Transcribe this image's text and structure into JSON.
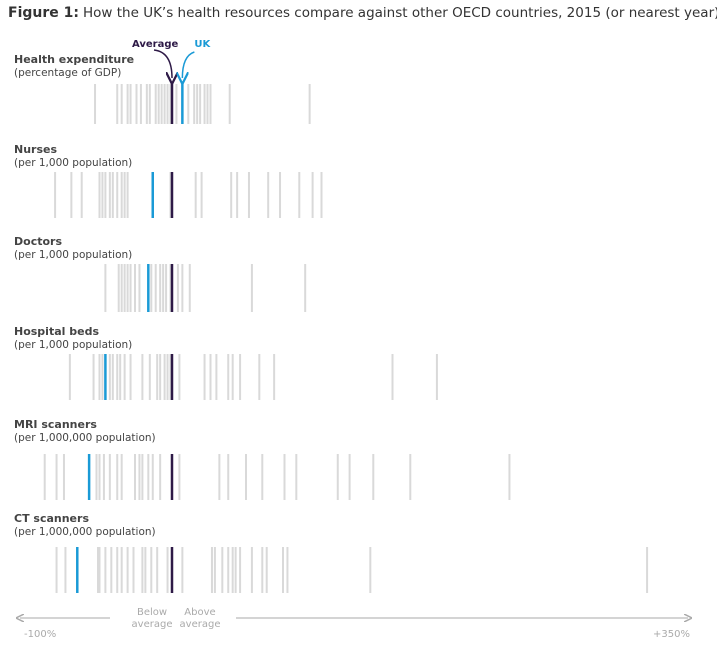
{
  "chart_data": {
    "type": "strip",
    "title_label": "Figure 1:",
    "title": "How the UK’s health resources compare against other OECD countries, 2015 (or nearest year)",
    "average_label": "Average",
    "uk_label": "UK",
    "below_label": "Below average",
    "above_label": "Above average",
    "xlim": [
      -100,
      350
    ],
    "xticks": [
      {
        "value": -100,
        "label": "-100%"
      },
      {
        "value": 350,
        "label": "+350%"
      }
    ],
    "colors": {
      "other": "#d9d9d9",
      "average": "#2e1a47",
      "uk": "#1a9ad6"
    },
    "panels": [
      {
        "title": "Health expenditure",
        "subtitle": "(percentage of GDP)",
        "average": 0,
        "uk": 7,
        "values": [
          -52,
          -37,
          -34,
          -30,
          -28,
          -24,
          -21,
          -17,
          -15,
          -11,
          -9,
          -7,
          -5,
          -3,
          -1,
          3,
          11,
          15,
          17,
          19,
          22,
          24,
          26,
          39,
          93
        ]
      },
      {
        "title": "Nurses",
        "subtitle": "(per 1,000 population)",
        "average": 0,
        "uk": -13,
        "values": [
          -79,
          -68,
          -61,
          -49,
          -47,
          -45,
          -42,
          -40,
          -37,
          -34,
          -32,
          -30,
          -1,
          16,
          20,
          40,
          44,
          52,
          65,
          73,
          86,
          95,
          101
        ]
      },
      {
        "title": "Doctors",
        "subtitle": "(per 1,000 population)",
        "average": 0,
        "uk": -16,
        "values": [
          -45,
          -36,
          -34,
          -32,
          -30,
          -28,
          -25,
          -22,
          -14,
          -11,
          -8,
          -6,
          -4,
          -1,
          4,
          7,
          12,
          54,
          90
        ]
      },
      {
        "title": "Hospital beds",
        "subtitle": "(per 1,000 population)",
        "average": 0,
        "uk": -45,
        "values": [
          -69,
          -53,
          -49,
          -47,
          -42,
          -40,
          -37,
          -35,
          -32,
          -28,
          -20,
          -15,
          -10,
          -8,
          -5,
          -3,
          -1,
          5,
          22,
          26,
          30,
          38,
          41,
          46,
          59,
          69,
          149,
          179
        ]
      },
      {
        "title": "MRI scanners",
        "subtitle": "(per 1,000,000  population)",
        "average": 0,
        "uk": -56,
        "values": [
          -86,
          -78,
          -73,
          -51,
          -49,
          -46,
          -42,
          -37,
          -34,
          -25,
          -22,
          -20,
          -16,
          -13,
          -8,
          5,
          32,
          38,
          50,
          61,
          76,
          84,
          112,
          120,
          136,
          161,
          228
        ]
      },
      {
        "title": "CT scanners",
        "subtitle": "(per 1,000,000  population)",
        "average": 0,
        "uk": -64,
        "values": [
          -78,
          -72,
          -50,
          -49,
          -45,
          -41,
          -37,
          -34,
          -30,
          -26,
          -20,
          -18,
          -14,
          -10,
          -3,
          7,
          27,
          29,
          34,
          38,
          41,
          43,
          46,
          54,
          61,
          64,
          75,
          78,
          134,
          321
        ]
      }
    ]
  }
}
